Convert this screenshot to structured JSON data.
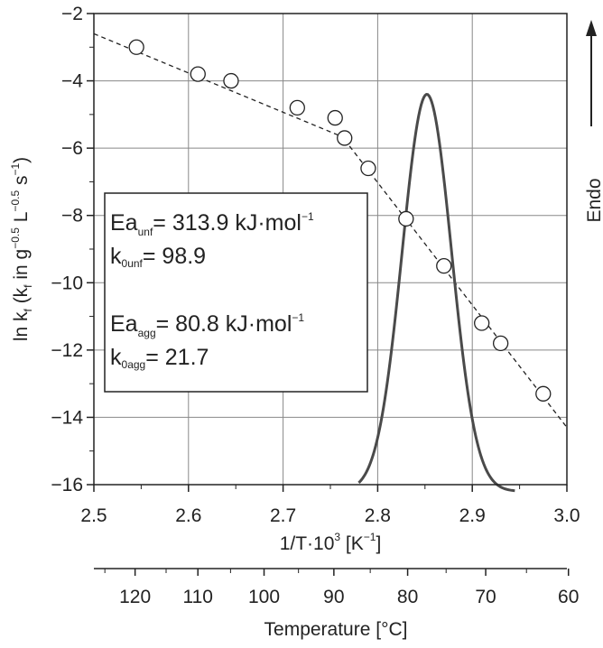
{
  "chart_data": {
    "type": "scatter",
    "xlabel": {
      "main": "1/T·10",
      "sup": "3",
      "unit_open": " [K",
      "unit_sup": "−1",
      "unit_close": "]"
    },
    "ylabel": {
      "p1": "ln k",
      "p1_sub": "f",
      "p2": " (k",
      "p2_sub": "f",
      "p3": " in g",
      "p3_sup": "−0.5",
      "p4": " L",
      "p4_sup": "−0.5",
      "p5": " s",
      "p5_sup": "−1",
      "p6": ")"
    },
    "secondary_xlabel": "Temperature [°C]",
    "endo_label": "Endo",
    "xlim": [
      2.5,
      3.0
    ],
    "ylim": [
      -16,
      -2
    ],
    "x_ticks": [
      2.5,
      2.6,
      2.7,
      2.8,
      2.9,
      3.0
    ],
    "x_tick_labels": [
      "2.5",
      "2.6",
      "2.7",
      "2.8",
      "2.9",
      "3.0"
    ],
    "y_ticks": [
      -2,
      -4,
      -6,
      -8,
      -10,
      -12,
      -14,
      -16
    ],
    "y_tick_labels": [
      "−2",
      "−4",
      "−6",
      "−8",
      "−10",
      "−12",
      "−14",
      "−16"
    ],
    "temperature_ticks": [
      120,
      110,
      100,
      90,
      80,
      70,
      60
    ],
    "temperature_tick_labels": [
      "120",
      "110",
      "100",
      "90",
      "80",
      "70",
      "60"
    ],
    "grid": true,
    "points": [
      {
        "x": 2.545,
        "y": -3.0
      },
      {
        "x": 2.61,
        "y": -3.8
      },
      {
        "x": 2.645,
        "y": -4.0
      },
      {
        "x": 2.715,
        "y": -4.8
      },
      {
        "x": 2.755,
        "y": -5.1
      },
      {
        "x": 2.765,
        "y": -5.7
      },
      {
        "x": 2.79,
        "y": -6.6
      },
      {
        "x": 2.83,
        "y": -8.1
      },
      {
        "x": 2.87,
        "y": -9.5
      },
      {
        "x": 2.91,
        "y": -11.2
      },
      {
        "x": 2.93,
        "y": -11.8
      },
      {
        "x": 2.975,
        "y": -13.3
      }
    ],
    "fit_line_unfolding": {
      "x": [
        2.5,
        2.77
      ],
      "y": [
        -2.6,
        -5.75
      ]
    },
    "fit_line_aggregation": {
      "x": [
        2.765,
        3.0
      ],
      "y": [
        -5.75,
        -14.3
      ]
    },
    "dsc_peak": {
      "center": 2.852,
      "peak_y": -4.4,
      "baseline_y": -16.2,
      "x_start": 2.78,
      "x_end": 2.945
    },
    "annotations": {
      "ea_unf_main": "Ea",
      "ea_unf_sub": "unf",
      "ea_unf_rest": "= 313.9 kJ·mol",
      "ea_unf_sup": "−1",
      "k0_unf_k": "k",
      "k0_unf_0": "0",
      "k0_unf_sub": "unf",
      "k0_unf_rest": "= 98.9",
      "ea_agg_main": "Ea",
      "ea_agg_sub": "agg",
      "ea_agg_rest": "= 80.8 kJ·mol",
      "ea_agg_sup": "−1",
      "k0_agg_k": "k",
      "k0_agg_0": "0",
      "k0_agg_sub": "agg",
      "k0_agg_rest": "= 21.7"
    },
    "colors": {
      "line": "#222222",
      "grid": "#888888",
      "dsc": "#4a4a4a",
      "point_fill": "#ffffff"
    }
  }
}
